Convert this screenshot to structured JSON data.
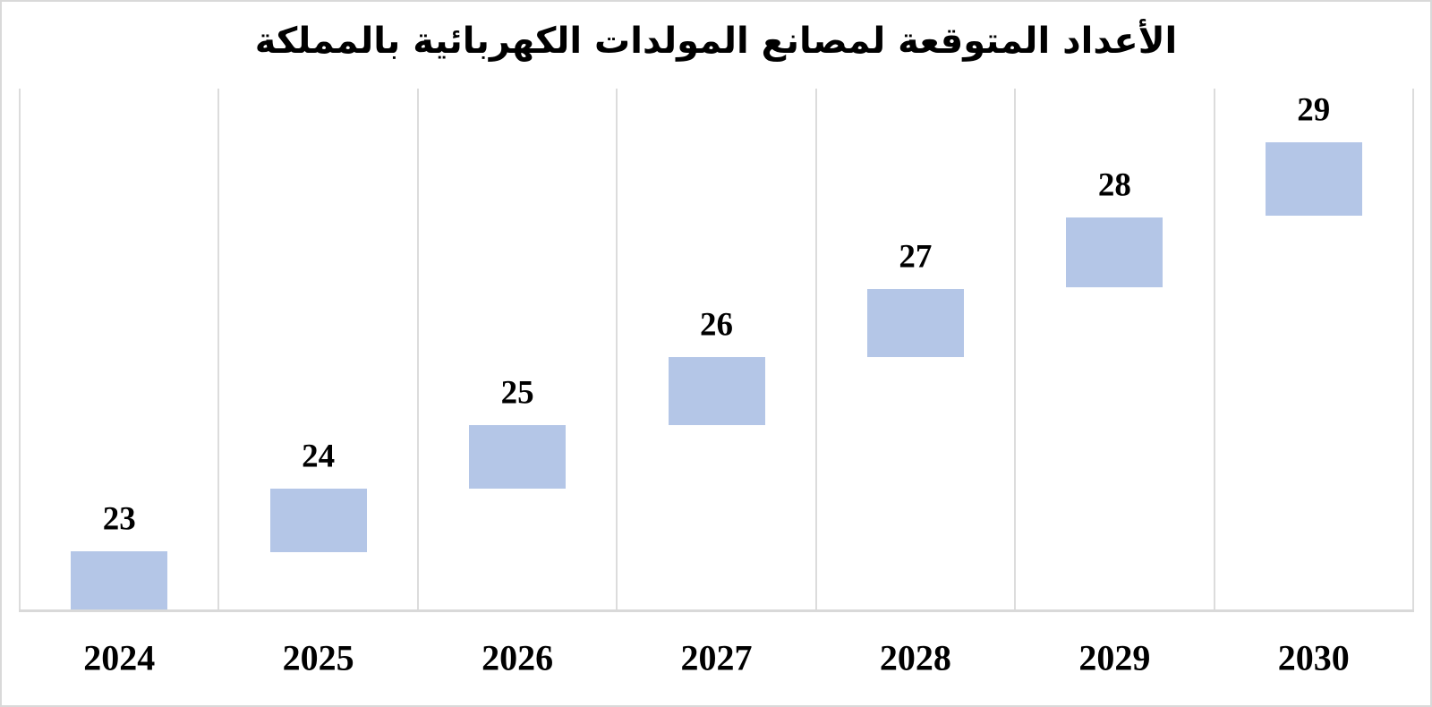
{
  "title": "الأعداد المتوقعة لمصانع المولدات الكهربائية بالمملكة",
  "chart_data": {
    "type": "bar",
    "subtype": "floating-stepped-columns",
    "title": "الأعداد المتوقعة لمصانع المولدات الكهربائية بالمملكة",
    "categories": [
      "2024",
      "2025",
      "2026",
      "2027",
      "2028",
      "2029",
      "2030"
    ],
    "values": [
      23,
      24,
      25,
      26,
      27,
      28,
      29
    ],
    "bar_spans": [
      [
        22.12,
        23.0
      ],
      [
        22.99,
        23.92
      ],
      [
        23.92,
        24.85
      ],
      [
        24.85,
        25.85
      ],
      [
        25.85,
        26.85
      ],
      [
        26.87,
        27.9
      ],
      [
        27.92,
        29.0
      ]
    ],
    "ylim": [
      22.12,
      29.79
    ],
    "xlabel": "",
    "ylabel": "",
    "legend": "none",
    "grid": "vertical-category-separators-only",
    "y_axis_ticks": "none",
    "data_labels": "above-bars",
    "bar_color": "#b4c6e7",
    "gridline_color": "#dcdcdc",
    "axis_line_color": "#d9d9d9",
    "border_color": "#d9d9d9",
    "text_color": "#000000"
  }
}
